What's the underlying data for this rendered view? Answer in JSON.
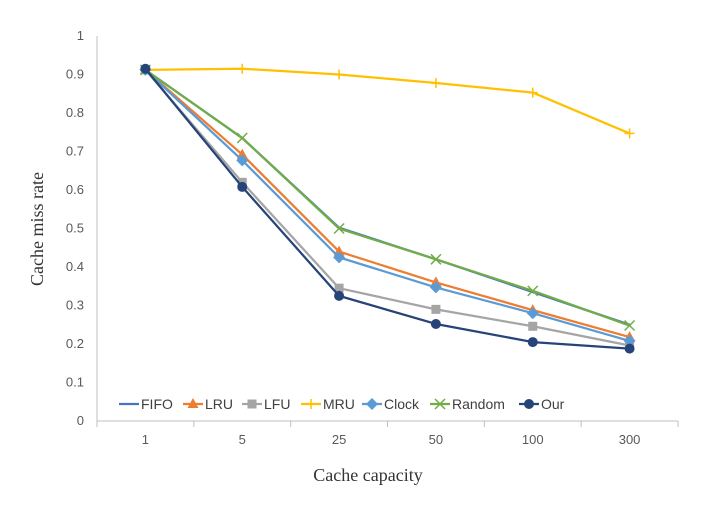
{
  "chart_data": {
    "type": "line",
    "title": "",
    "xlabel": "Cache capacity",
    "ylabel": "Cache miss rate",
    "categories": [
      "1",
      "5",
      "25",
      "50",
      "100",
      "300"
    ],
    "ylim": [
      0,
      1
    ],
    "yticks": [
      "0",
      "0.1",
      "0.2",
      "0.3",
      "0.4",
      "0.5",
      "0.6",
      "0.7",
      "0.8",
      "0.9",
      "1"
    ],
    "grid": false,
    "legend_position": "bottom-left inside plot",
    "series": [
      {
        "name": "FIFO",
        "color": "#4472C4",
        "marker": "none",
        "values": [
          0.912,
          0.735,
          0.502,
          0.42,
          0.335,
          0.25
        ]
      },
      {
        "name": "LRU",
        "color": "#ED7D31",
        "marker": "triangle",
        "values": [
          0.912,
          0.692,
          0.44,
          0.36,
          0.288,
          0.218
        ]
      },
      {
        "name": "LFU",
        "color": "#A5A5A5",
        "marker": "square",
        "values": [
          0.912,
          0.62,
          0.345,
          0.29,
          0.246,
          0.196
        ]
      },
      {
        "name": "MRU",
        "color": "#FFC000",
        "marker": "plus",
        "values": [
          0.912,
          0.915,
          0.9,
          0.878,
          0.853,
          0.747
        ]
      },
      {
        "name": "Clock",
        "color": "#5B9BD5",
        "marker": "diamond",
        "values": [
          0.912,
          0.677,
          0.425,
          0.347,
          0.28,
          0.208
        ]
      },
      {
        "name": "Random",
        "color": "#70AD47",
        "marker": "x",
        "values": [
          0.912,
          0.735,
          0.5,
          0.42,
          0.338,
          0.248
        ]
      },
      {
        "name": "Our",
        "color": "#264478",
        "marker": "circle",
        "values": [
          0.915,
          0.608,
          0.325,
          0.252,
          0.205,
          0.188
        ]
      }
    ]
  }
}
